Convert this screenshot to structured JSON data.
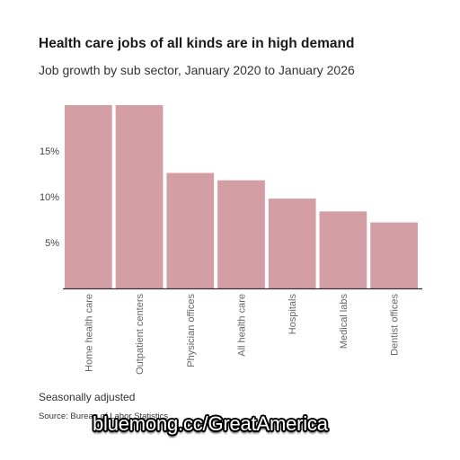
{
  "chart_data": {
    "type": "bar",
    "title": "Health care jobs of all kinds are in high demand",
    "subtitle": "Job growth by sub sector, January 2020 to January 2026",
    "categories": [
      "Home health care",
      "Outpatient centers",
      "Physician offices",
      "All health care",
      "Hospitals",
      "Medical labs",
      "Dentist offices"
    ],
    "values": [
      20.0,
      20.0,
      12.6,
      11.8,
      9.8,
      8.4,
      7.2
    ],
    "yticks": [
      5,
      10,
      15
    ],
    "ytick_labels": [
      "5%",
      "10%",
      "15%"
    ],
    "ylim": [
      0,
      20
    ],
    "grid": false,
    "legend": "none",
    "bar_color": "#d49ea5"
  },
  "footer": {
    "note": "Seasonally adjusted",
    "source": "Source: Bureau of Labor Statistics"
  },
  "watermark": "bluemong.cc/GreatAmerica"
}
